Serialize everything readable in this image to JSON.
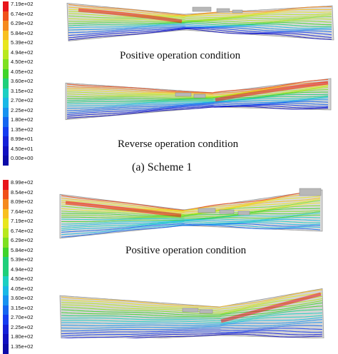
{
  "scheme1": {
    "colorbar_labels": [
      "7.19e+02",
      "6.74e+02",
      "6.29e+02",
      "5.84e+02",
      "5.39e+02",
      "4.94e+02",
      "4.50e+02",
      "4.05e+02",
      "3.60e+02",
      "3.15e+02",
      "2.70e+02",
      "2.25e+02",
      "1.80e+02",
      "1.35e+02",
      "8.99e+01",
      "4.50e+01",
      "0.00e+00"
    ],
    "positive_caption": "Positive operation condition",
    "reverse_caption": "Reverse operation condition",
    "label": "(a) Scheme 1"
  },
  "scheme2": {
    "colorbar_labels": [
      "8.99e+02",
      "8.54e+02",
      "8.09e+02",
      "7.64e+02",
      "7.19e+02",
      "6.74e+02",
      "6.29e+02",
      "5.84e+02",
      "5.39e+02",
      "4.94e+02",
      "4.50e+02",
      "4.05e+02",
      "3.60e+02",
      "3.15e+02",
      "2.70e+02",
      "2.25e+02",
      "1.80e+02",
      "1.35e+02"
    ],
    "positive_caption": "Positive operation condition"
  },
  "colors": {
    "scale": [
      "#e8151b",
      "#f0501a",
      "#f58a1e",
      "#f8c01f",
      "#e8e61e",
      "#b8e81e",
      "#7ee020",
      "#3fd42a",
      "#1fcf7a",
      "#1ccfc2",
      "#19b8e6",
      "#1792f0",
      "#1566f0",
      "#143cf0",
      "#1420d8",
      "#1010c0",
      "#0b0aa8"
    ]
  }
}
